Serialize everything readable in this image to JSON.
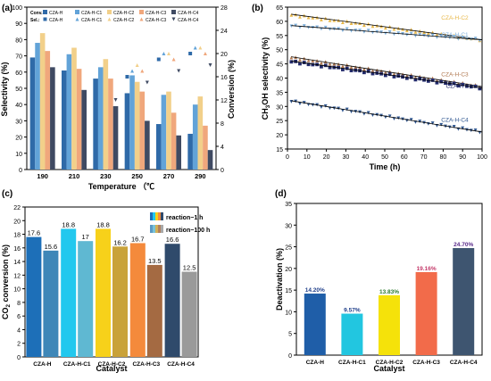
{
  "panels": {
    "a": "(a)",
    "b": "(b)",
    "c": "(c)",
    "d": "(d)"
  },
  "chart_data": [
    {
      "id": "a",
      "type": "bar",
      "xlabel": "Temperature （℃",
      "ylabel": "Selectivity (%)",
      "y2label": "Conversion (%)",
      "categories": [
        "190",
        "210",
        "230",
        "250",
        "270",
        "290"
      ],
      "ylim": [
        0,
        100
      ],
      "y2lim": [
        0,
        28
      ],
      "yticks": [
        0,
        10,
        20,
        30,
        40,
        50,
        60,
        70,
        80,
        90,
        100
      ],
      "y2ticks": [
        0,
        4,
        8,
        12,
        16,
        20,
        24,
        28
      ],
      "legend_conv_prefix": "Conv.:",
      "legend_sel_prefix": "Sel.:",
      "series_names": [
        "CZA-H",
        "CZA-H-C1",
        "CZA-H-C2",
        "CZA-H-C3",
        "CZA-H-C4"
      ],
      "colors": [
        "#2f6aa8",
        "#62a3d8",
        "#f2d08a",
        "#f0a77c",
        "#3f4a62"
      ],
      "selectivity": [
        [
          69,
          61,
          56,
          47,
          28,
          22
        ],
        [
          78,
          71,
          63,
          58,
          46,
          40
        ],
        [
          84,
          75,
          68,
          54,
          48,
          45
        ],
        [
          73,
          62,
          56,
          48,
          35,
          27
        ],
        [
          63,
          49,
          39,
          30,
          21,
          12
        ]
      ],
      "conversion": [
        [
          6,
          10,
          13,
          16,
          19,
          20
        ],
        [
          7,
          11,
          14,
          17,
          20,
          21
        ],
        [
          8,
          12,
          15,
          18,
          20,
          21
        ],
        [
          6,
          11,
          14,
          17,
          19,
          20
        ],
        [
          5,
          9,
          12,
          15,
          17,
          18
        ]
      ]
    },
    {
      "id": "b",
      "type": "scatter",
      "xlabel": "Time (h)",
      "ylabel": "CH3OH selectivity (%)",
      "ylabel_main": "CH",
      "ylabel_sub": "3",
      "ylabel_rest": "OH selectivity (%)",
      "xlim": [
        0,
        100
      ],
      "ylim": [
        15,
        65
      ],
      "xticks": [
        0,
        10,
        20,
        30,
        40,
        50,
        60,
        70,
        80,
        90,
        100
      ],
      "yticks": [
        15,
        20,
        25,
        30,
        35,
        40,
        45,
        50,
        55,
        60,
        65
      ],
      "series": [
        {
          "name": "CZA-H-C2",
          "color": "#e8b84a",
          "marker": "triangle",
          "start": 62.5,
          "end": 53.5,
          "label_y": 61.5
        },
        {
          "name": "CZA-H-C1",
          "color": "#7fb0dc",
          "marker": "triangle-down",
          "start": 58.5,
          "end": 53.5,
          "label_y": 55.5
        },
        {
          "name": "CZA-H-C3",
          "color": "#b07850",
          "marker": "triangle",
          "start": 47.5,
          "end": 37.0,
          "label_y": 41.5
        },
        {
          "name": "CZA-H",
          "color": "#222a6b",
          "marker": "square",
          "start": 46.0,
          "end": 36.5,
          "label_y": 37.5
        },
        {
          "name": "CZA-H-C4",
          "color": "#2f5690",
          "marker": "triangle-down",
          "start": 32.0,
          "end": 21.0,
          "label_y": 25.5
        }
      ]
    },
    {
      "id": "c",
      "type": "bar",
      "xlabel": "Catalyst",
      "ylabel": "CO2 conversion (%)",
      "ylabel_main": "CO",
      "ylabel_sub": "2",
      "ylabel_rest": " conversion (%)",
      "ylim": [
        0,
        22
      ],
      "yticks": [
        0,
        2,
        4,
        6,
        8,
        10,
        12,
        14,
        16,
        18,
        20,
        22
      ],
      "categories": [
        "CZA-H",
        "CZA-H-C1",
        "CZA-H-C2",
        "CZA-H-C3",
        "CZA-H-C4"
      ],
      "legend": [
        "reaction−1 h",
        "reaction−100 h"
      ],
      "series": [
        {
          "name": "reaction−1 h",
          "values": [
            17.6,
            18.8,
            18.8,
            16.7,
            16.6
          ],
          "labels": [
            "17.6",
            "18.8",
            "18.8",
            "16.7",
            "16.6"
          ]
        },
        {
          "name": "reaction−100 h",
          "values": [
            15.6,
            17,
            16.2,
            13.5,
            12.5
          ],
          "labels": [
            "15.6",
            "17",
            "16.2",
            "13.5",
            "12.5"
          ]
        }
      ],
      "colors_1h": [
        "#1d6fb8",
        "#22c8ee",
        "#f7d11a",
        "#f48a3c",
        "#2f4a6b"
      ],
      "colors_100h": [
        "#3f87b8",
        "#5fb8d2",
        "#c9a23a",
        "#a46a42",
        "#9a9a9a"
      ]
    },
    {
      "id": "d",
      "type": "bar",
      "xlabel": "Catalyst",
      "ylabel": "Deactivation (%)",
      "ylim": [
        0,
        35
      ],
      "yticks": [
        0,
        5,
        10,
        15,
        20,
        25,
        30,
        35
      ],
      "categories": [
        "CZA-H",
        "CZA-H-C1",
        "CZA-H-C2",
        "CZA-H-C3",
        "CZA-H-C4"
      ],
      "values": [
        14.2,
        9.57,
        13.83,
        19.16,
        24.7
      ],
      "labels": [
        "14.20%",
        "9.57%",
        "13.83%",
        "19.16%",
        "24.70%"
      ],
      "colors": [
        "#1f5ea8",
        "#22c6e0",
        "#f5e20a",
        "#f26b4a",
        "#3e5570"
      ],
      "label_colors": [
        "#1f3f8a",
        "#1f3f8a",
        "#2b7a2b",
        "#c43a6a",
        "#5a2a8a"
      ]
    }
  ]
}
